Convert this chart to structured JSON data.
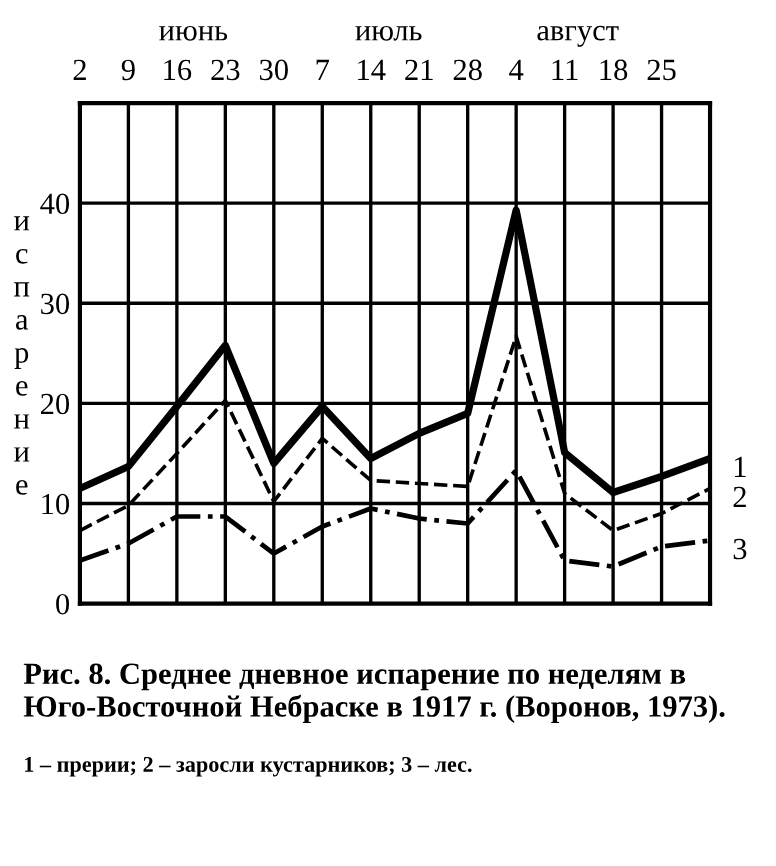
{
  "chart_data": {
    "type": "line",
    "ylabel": "испарение",
    "categories": [
      "2",
      "9",
      "16",
      "23",
      "30",
      "7",
      "14",
      "21",
      "28",
      "4",
      "11",
      "18",
      "25",
      null
    ],
    "ylim": [
      0,
      50
    ],
    "yticks": [
      0,
      10,
      20,
      30,
      40
    ],
    "grid": true,
    "legend": false,
    "marker": "none",
    "series": [
      {
        "name": "1",
        "color": "#000000",
        "line_style": "solid",
        "values": [
          11.5,
          13.7,
          19.7,
          25.8,
          14,
          19.7,
          14.5,
          17,
          19,
          39.3,
          15.1,
          11.1,
          12.7,
          14.5
        ]
      },
      {
        "name": "2",
        "color": "#000000",
        "line_style": "dashed",
        "values": [
          7.3,
          9.8,
          15,
          20.3,
          10.2,
          16.5,
          12.3,
          12,
          11.7,
          26.7,
          11,
          7.3,
          9,
          11.5
        ]
      },
      {
        "name": "3",
        "color": "#000000",
        "line_style": "dashdot",
        "values": [
          4.3,
          6,
          8.7,
          8.7,
          5,
          7.7,
          9.5,
          8.5,
          8,
          13.3,
          4.3,
          3.7,
          5.7,
          6.3
        ]
      }
    ],
    "annotations": [
      "июнь",
      "июль",
      "август",
      "Рис. 8. Среднее дневное испарение по неделям в Юго-Восточной Небраске в 1917 г. (Воронов, 1973).",
      "1 – прерии; 2 – заросли кустарников; 3 – лес."
    ]
  }
}
